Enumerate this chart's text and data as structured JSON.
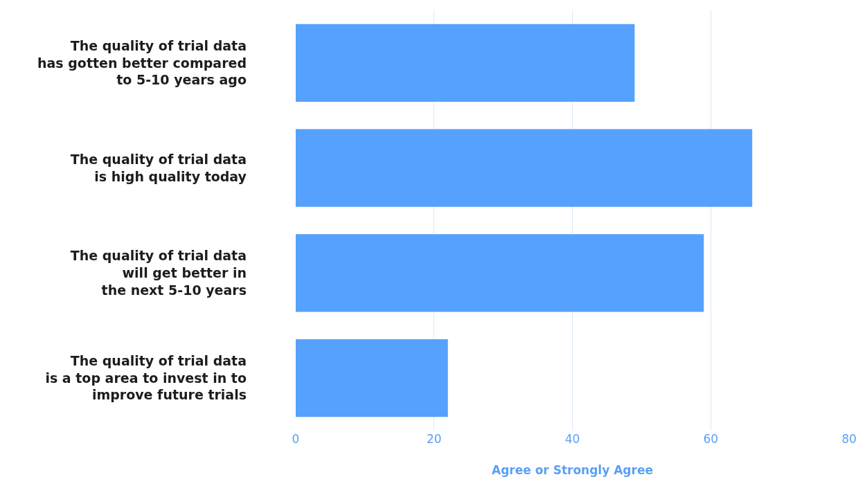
{
  "chart_data": {
    "type": "bar",
    "orientation": "horizontal",
    "xlabel": "Agree or Strongly Agree",
    "categories": [
      "The quality of trial data\nhas gotten better compared\nto 5-10 years ago",
      "The quality of trial data\nis high quality today",
      "The quality of trial data\nwill get better in\nthe next 5-10 years",
      "The quality of trial data\nis a top area to invest in to\nimprove future trials"
    ],
    "values": [
      49,
      66,
      59,
      22
    ],
    "color": "#55a1fd",
    "xlim": [
      0,
      80
    ],
    "xticks": [
      0,
      20,
      40,
      60,
      80
    ],
    "grid": "x"
  }
}
